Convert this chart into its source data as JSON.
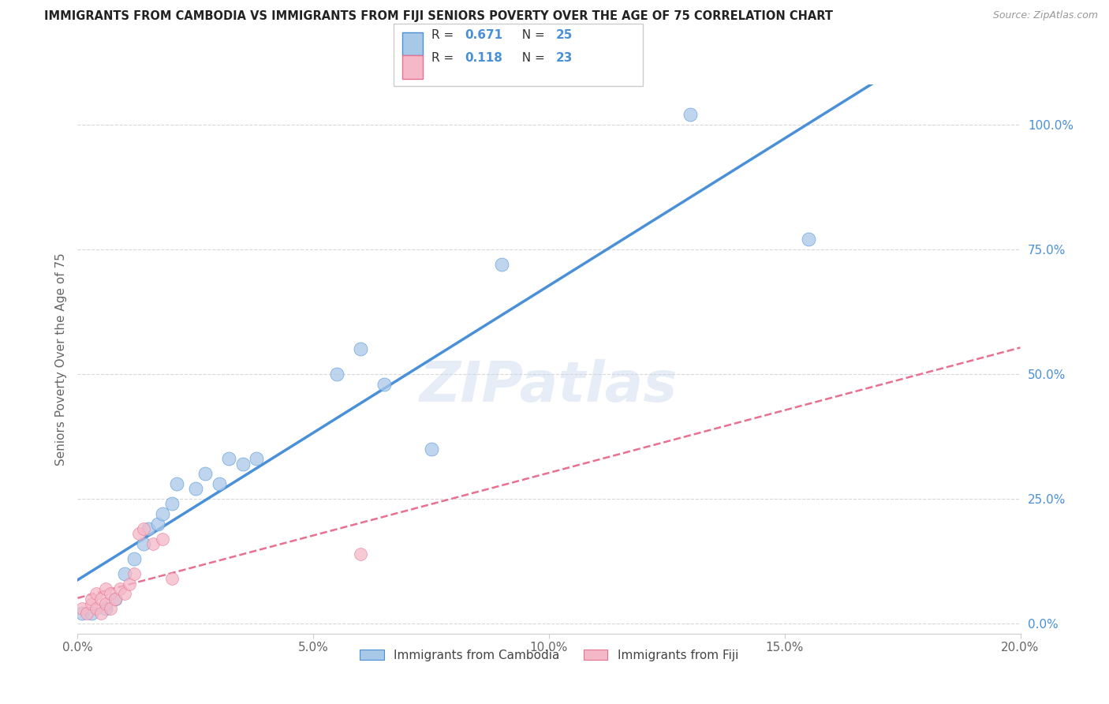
{
  "title": "IMMIGRANTS FROM CAMBODIA VS IMMIGRANTS FROM FIJI SENIORS POVERTY OVER THE AGE OF 75 CORRELATION CHART",
  "source": "Source: ZipAtlas.com",
  "ylabel": "Seniors Poverty Over the Age of 75",
  "xlim": [
    0.0,
    0.2
  ],
  "ylim": [
    -0.02,
    1.08
  ],
  "cambodia_R": 0.671,
  "cambodia_N": 25,
  "fiji_R": 0.118,
  "fiji_N": 23,
  "cambodia_color": "#a8c8e8",
  "fiji_color": "#f4b8c8",
  "cambodia_line_color": "#4a90d9",
  "fiji_line_color": "#e87090",
  "background_color": "#ffffff",
  "grid_color": "#d8d8d8",
  "watermark": "ZIPatlas",
  "cambodia_x": [
    0.001,
    0.003,
    0.006,
    0.008,
    0.01,
    0.012,
    0.014,
    0.015,
    0.017,
    0.018,
    0.02,
    0.021,
    0.025,
    0.027,
    0.03,
    0.032,
    0.035,
    0.038,
    0.055,
    0.06,
    0.065,
    0.075,
    0.09,
    0.13,
    0.155
  ],
  "cambodia_y": [
    0.02,
    0.02,
    0.03,
    0.05,
    0.1,
    0.13,
    0.16,
    0.19,
    0.2,
    0.22,
    0.24,
    0.28,
    0.27,
    0.3,
    0.28,
    0.33,
    0.32,
    0.33,
    0.5,
    0.55,
    0.48,
    0.35,
    0.72,
    1.02,
    0.77
  ],
  "fiji_x": [
    0.001,
    0.002,
    0.003,
    0.003,
    0.004,
    0.004,
    0.005,
    0.005,
    0.006,
    0.006,
    0.007,
    0.007,
    0.008,
    0.009,
    0.01,
    0.011,
    0.012,
    0.013,
    0.014,
    0.016,
    0.018,
    0.02,
    0.06
  ],
  "fiji_y": [
    0.03,
    0.02,
    0.04,
    0.05,
    0.03,
    0.06,
    0.02,
    0.05,
    0.04,
    0.07,
    0.03,
    0.06,
    0.05,
    0.07,
    0.06,
    0.08,
    0.1,
    0.18,
    0.19,
    0.16,
    0.17,
    0.09,
    0.14
  ],
  "x_tick_positions": [
    0.0,
    0.05,
    0.1,
    0.15,
    0.2
  ],
  "x_tick_labels": [
    "0.0%",
    "5.0%",
    "10.0%",
    "15.0%",
    "20.0%"
  ],
  "y_tick_positions": [
    0.0,
    0.25,
    0.5,
    0.75,
    1.0
  ],
  "y_tick_labels_right": [
    "0.0%",
    "25.0%",
    "50.0%",
    "75.0%",
    "100.0%"
  ]
}
